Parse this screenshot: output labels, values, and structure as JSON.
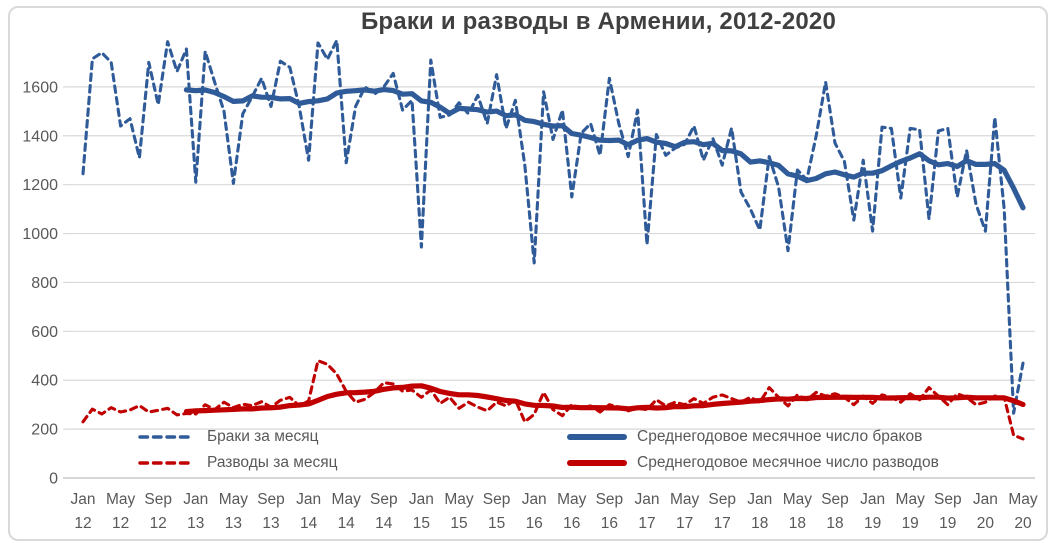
{
  "colors": {
    "background": "#FFFFFF",
    "frame_border": "#D9D9D9",
    "gridline": "#D9D9D9",
    "axis_line": "#BFBFBF",
    "axis_text": "#595959",
    "title_text": "#404040",
    "marriages_blue": "#2F5B99",
    "divorces_red": "#C00000"
  },
  "chart_data": {
    "type": "line",
    "title": "Браки и разводы в Армении, 2012-2020",
    "grid": true,
    "legend_position": "bottom-inside-two-columns",
    "x_axis": {
      "start": "Jan 2012",
      "end": "May 2020",
      "months_total": 101,
      "tick_every_n_months": 4,
      "tick_labels": [
        {
          "m": "Jan",
          "y": "12"
        },
        {
          "m": "May",
          "y": "12"
        },
        {
          "m": "Sep",
          "y": "12"
        },
        {
          "m": "Jan",
          "y": "13"
        },
        {
          "m": "May",
          "y": "13"
        },
        {
          "m": "Sep",
          "y": "13"
        },
        {
          "m": "Jan",
          "y": "14"
        },
        {
          "m": "May",
          "y": "14"
        },
        {
          "m": "Sep",
          "y": "14"
        },
        {
          "m": "Jan",
          "y": "15"
        },
        {
          "m": "May",
          "y": "15"
        },
        {
          "m": "Sep",
          "y": "15"
        },
        {
          "m": "Jan",
          "y": "16"
        },
        {
          "m": "May",
          "y": "16"
        },
        {
          "m": "Sep",
          "y": "16"
        },
        {
          "m": "Jan",
          "y": "17"
        },
        {
          "m": "May",
          "y": "17"
        },
        {
          "m": "Sep",
          "y": "17"
        },
        {
          "m": "Jan",
          "y": "18"
        },
        {
          "m": "May",
          "y": "18"
        },
        {
          "m": "Sep",
          "y": "18"
        },
        {
          "m": "Jan",
          "y": "19"
        },
        {
          "m": "May",
          "y": "19"
        },
        {
          "m": "Sep",
          "y": "19"
        },
        {
          "m": "Jan",
          "y": "20"
        },
        {
          "m": "May",
          "y": "20"
        }
      ]
    },
    "y_axis": {
      "min": 0,
      "max": 1800,
      "gridline_step": 200,
      "tick_labels": [
        "0",
        "200",
        "400",
        "600",
        "800",
        "1000",
        "1200",
        "1400",
        "1600"
      ]
    },
    "series": [
      {
        "name": "Браки за месяц",
        "style": "dashed",
        "color": "#2F5B99",
        "values": [
          1245,
          1715,
          1740,
          1700,
          1440,
          1470,
          1310,
          1700,
          1527,
          1785,
          1663,
          1755,
          1210,
          1745,
          1620,
          1500,
          1205,
          1490,
          1560,
          1635,
          1520,
          1705,
          1680,
          1520,
          1300,
          1780,
          1713,
          1790,
          1290,
          1520,
          1600,
          1570,
          1600,
          1655,
          1505,
          1545,
          945,
          1710,
          1475,
          1485,
          1535,
          1490,
          1565,
          1450,
          1650,
          1430,
          1545,
          1280,
          880,
          1580,
          1385,
          1505,
          1150,
          1410,
          1450,
          1320,
          1635,
          1450,
          1315,
          1505,
          955,
          1405,
          1320,
          1350,
          1365,
          1440,
          1300,
          1390,
          1280,
          1432,
          1170,
          1100,
          1015,
          1315,
          1190,
          930,
          1260,
          1220,
          1400,
          1620,
          1370,
          1295,
          1055,
          1300,
          1010,
          1435,
          1430,
          1145,
          1430,
          1425,
          1060,
          1420,
          1430,
          1150,
          1340,
          1120,
          1010,
          1475,
          1100,
          265,
          470
        ]
      },
      {
        "name": "Разводы за месяц",
        "style": "dashed",
        "color": "#C00000",
        "values": [
          230,
          282,
          262,
          288,
          270,
          278,
          296,
          270,
          277,
          285,
          258,
          264,
          262,
          300,
          280,
          310,
          288,
          302,
          296,
          312,
          290,
          318,
          330,
          295,
          315,
          480,
          465,
          425,
          355,
          310,
          322,
          350,
          390,
          385,
          355,
          360,
          330,
          360,
          305,
          330,
          285,
          310,
          290,
          275,
          310,
          295,
          320,
          230,
          260,
          350,
          280,
          255,
          300,
          285,
          295,
          270,
          300,
          290,
          275,
          285,
          280,
          320,
          295,
          310,
          300,
          325,
          305,
          330,
          340,
          325,
          310,
          330,
          310,
          370,
          330,
          295,
          340,
          320,
          350,
          335,
          345,
          330,
          300,
          335,
          305,
          340,
          330,
          310,
          345,
          320,
          370,
          335,
          300,
          345,
          330,
          300,
          310,
          335,
          330,
          175,
          160
        ]
      },
      {
        "name": "Среднегодовое месячное число браков",
        "style": "solid",
        "color": "#2F5B99",
        "derived_from": "Браки за месяц",
        "moving_average_window": 12
      },
      {
        "name": "Среднегодовое месячное число разводов",
        "style": "solid",
        "color": "#C00000",
        "derived_from": "Разводы за месяц",
        "moving_average_window": 12
      }
    ]
  }
}
